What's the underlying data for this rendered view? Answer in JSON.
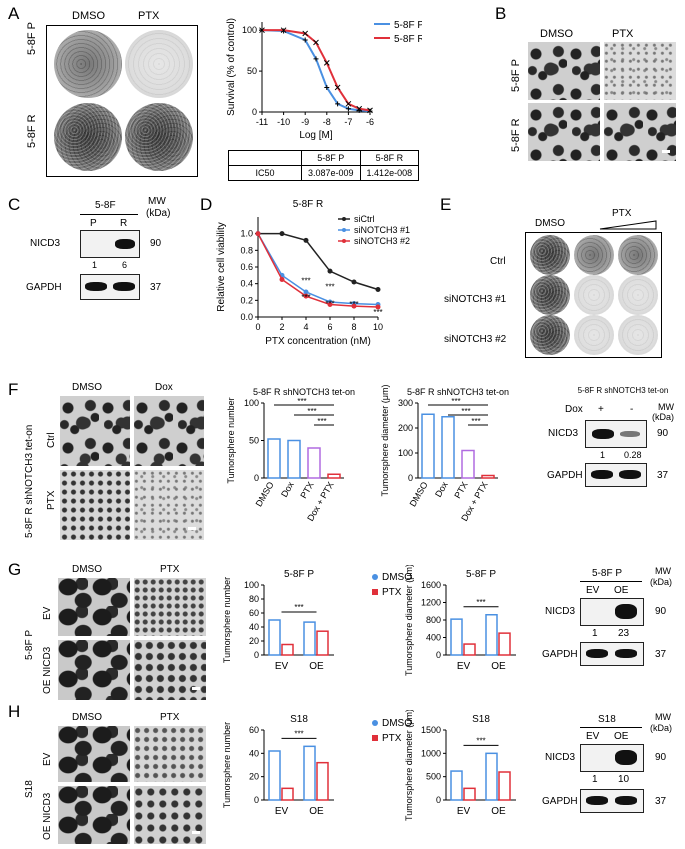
{
  "panels": {
    "A": {
      "letter": "A",
      "col1": "DMSO",
      "col2": "PTX",
      "row1": "5-8F  P",
      "row2": "5-8F  R",
      "chart": {
        "ylabel": "Survival (% of control)",
        "xlabel": "Log [M]",
        "xticks": [
          "-11",
          "-10",
          "-9",
          "-8",
          "-7",
          "-6"
        ],
        "yticks": [
          "0",
          "50",
          "100"
        ],
        "legend": [
          "5-8F P",
          "5-8F R"
        ],
        "colors": [
          "#4a90e2",
          "#e0303a"
        ]
      },
      "table": {
        "header": [
          "",
          "5-8F P",
          "5-8F R"
        ],
        "row": [
          "IC50",
          "3.087e-009",
          "1.412e-008"
        ]
      }
    },
    "B": {
      "letter": "B",
      "col1": "DMSO",
      "col2": "PTX",
      "row1": "5-8F  P",
      "row2": "5-8F  R"
    },
    "C": {
      "letter": "C",
      "title": "5-8F",
      "lane1": "P",
      "lane2": "R",
      "mw": "MW",
      "kda": "(kDa)",
      "protein1": "NICD3",
      "protein2": "GAPDH",
      "q1": "1",
      "q2": "6",
      "mw1": "90",
      "mw2": "37"
    },
    "D": {
      "letter": "D",
      "title": "5-8F  R",
      "ylabel": "Relative cell viability",
      "xlabel": "PTX concentration (nM)",
      "xticks": [
        "0",
        "2",
        "4",
        "6",
        "8",
        "10"
      ],
      "yticks": [
        "0.0",
        "0.2",
        "0.4",
        "0.6",
        "0.8",
        "1.0"
      ],
      "legend": [
        "siCtrl",
        "siNOTCH3 #1",
        "siNOTCH3 #2"
      ],
      "colors": [
        "#222222",
        "#4a90e2",
        "#e0303a"
      ],
      "sig": "***"
    },
    "E": {
      "letter": "E",
      "col1": "DMSO",
      "col2": "PTX",
      "row1": "Ctrl",
      "row2": "siNOTCH3 #1",
      "row3": "siNOTCH3 #2"
    },
    "F": {
      "letter": "F",
      "side": "5-8F R shNOTCH3 tet-on",
      "col1": "DMSO",
      "col2": "Dox",
      "row1": "Ctrl",
      "row2": "PTX",
      "chart1": {
        "title": "5-8F R shNOTCH3 tet-on",
        "ylabel": "Tumorsphere number",
        "yticks": [
          "0",
          "50",
          "100"
        ],
        "xticks": [
          "DMSO",
          "Dox",
          "PTX",
          "Dox + PTX"
        ]
      },
      "chart2": {
        "title": "5-8F R shNOTCH3  tet-on",
        "ylabel": "Tumorsphere diameter (μm)",
        "yticks": [
          "0",
          "100",
          "200",
          "300"
        ],
        "xticks": [
          "DMSO",
          "Dox",
          "PTX",
          "Dox + PTX"
        ]
      },
      "sig": "***",
      "blot": {
        "title": "5-8F R shNOTCH3 tet-on",
        "dox": "Dox",
        "plus": "+",
        "minus": "-",
        "mw": "MW",
        "kda": "(kDa)",
        "protein1": "NICD3",
        "protein2": "GAPDH",
        "q1": "1",
        "q2": "0.28",
        "mw1": "90",
        "mw2": "37"
      }
    },
    "G": {
      "letter": "G",
      "side": "5-8F P",
      "col1": "DMSO",
      "col2": "PTX",
      "row1": "EV",
      "row2": "OE NICD3",
      "chart1": {
        "title": "5-8F P",
        "ylabel": "Tumorsphere number",
        "yticks": [
          "0",
          "20",
          "40",
          "60",
          "80",
          "100"
        ],
        "xticks": [
          "EV",
          "OE"
        ]
      },
      "legend": [
        "DMSO",
        "PTX"
      ],
      "chart2": {
        "title": "5-8F P",
        "ylabel": "Tumorsphere diameter (μm)",
        "yticks": [
          "0",
          "400",
          "800",
          "1200",
          "1600"
        ],
        "xticks": [
          "EV",
          "OE"
        ]
      },
      "sig": "***",
      "blot": {
        "title": "5-8F P",
        "lane1": "EV",
        "lane2": "OE",
        "mw": "MW",
        "kda": "(kDa)",
        "protein1": "NICD3",
        "protein2": "GAPDH",
        "q1": "1",
        "q2": "23",
        "mw1": "90",
        "mw2": "37"
      }
    },
    "H": {
      "letter": "H",
      "side": "S18",
      "col1": "DMSO",
      "col2": "PTX",
      "row1": "EV",
      "row2": "OE NICD3",
      "chart1": {
        "title": "S18",
        "ylabel": "Tumorsphere number",
        "yticks": [
          "0",
          "20",
          "40",
          "60"
        ],
        "xticks": [
          "EV",
          "OE"
        ]
      },
      "legend": [
        "DMSO",
        "PTX"
      ],
      "chart2": {
        "title": "S18",
        "ylabel": "Tumorsphere diameter (μm)",
        "yticks": [
          "0",
          "500",
          "1000",
          "1500"
        ],
        "xticks": [
          "EV",
          "OE"
        ]
      },
      "sig": "***",
      "blot": {
        "title": "S18",
        "lane1": "EV",
        "lane2": "OE",
        "mw": "MW",
        "kda": "(kDa)",
        "protein1": "NICD3",
        "protein2": "GAPDH",
        "q1": "1",
        "q2": "10",
        "mw1": "90",
        "mw2": "37"
      }
    }
  },
  "chart_data": [
    {
      "type": "line",
      "panel": "A",
      "x": [
        -11,
        -10,
        -9,
        -8.5,
        -8,
        -7.5,
        -7,
        -6.5,
        -6
      ],
      "series": [
        {
          "name": "5-8F P",
          "values": [
            100,
            99,
            88,
            65,
            30,
            10,
            4,
            2,
            1
          ]
        },
        {
          "name": "5-8F R",
          "values": [
            100,
            100,
            96,
            85,
            60,
            30,
            10,
            4,
            2
          ]
        }
      ],
      "xlabel": "Log [M]",
      "ylabel": "Survival (% of control)",
      "ylim": [
        0,
        110
      ],
      "xlim": [
        -11,
        -6
      ]
    },
    {
      "type": "line",
      "panel": "D",
      "x": [
        0,
        2,
        4,
        6,
        8,
        10
      ],
      "series": [
        {
          "name": "siCtrl",
          "values": [
            1.0,
            1.0,
            0.92,
            0.55,
            0.42,
            0.33
          ]
        },
        {
          "name": "siNOTCH3 #1",
          "values": [
            1.0,
            0.5,
            0.3,
            0.18,
            0.16,
            0.15
          ]
        },
        {
          "name": "siNOTCH3 #2",
          "values": [
            1.0,
            0.45,
            0.25,
            0.15,
            0.13,
            0.12
          ]
        }
      ],
      "xlabel": "PTX concentration (nM)",
      "ylabel": "Relative cell viability",
      "ylim": [
        0,
        1.2
      ]
    },
    {
      "type": "bar",
      "panel": "F1",
      "categories": [
        "DMSO",
        "Dox",
        "PTX",
        "Dox + PTX"
      ],
      "values": [
        52,
        50,
        40,
        5
      ],
      "ylim": [
        0,
        100
      ],
      "ylabel": "Tumorsphere number"
    },
    {
      "type": "bar",
      "panel": "F2",
      "categories": [
        "DMSO",
        "Dox",
        "PTX",
        "Dox + PTX"
      ],
      "values": [
        255,
        245,
        110,
        10
      ],
      "ylim": [
        0,
        300
      ],
      "ylabel": "Tumorsphere diameter (μm)"
    },
    {
      "type": "bar",
      "panel": "G1",
      "categories": [
        "EV",
        "OE"
      ],
      "series": [
        {
          "name": "DMSO",
          "values": [
            50,
            47
          ]
        },
        {
          "name": "PTX",
          "values": [
            15,
            34
          ]
        }
      ],
      "ylim": [
        0,
        100
      ],
      "ylabel": "Tumorsphere number"
    },
    {
      "type": "bar",
      "panel": "G2",
      "categories": [
        "EV",
        "OE"
      ],
      "series": [
        {
          "name": "DMSO",
          "values": [
            820,
            920
          ]
        },
        {
          "name": "PTX",
          "values": [
            250,
            500
          ]
        }
      ],
      "ylim": [
        0,
        1600
      ],
      "ylabel": "Tumorsphere diameter (μm)"
    },
    {
      "type": "bar",
      "panel": "H1",
      "categories": [
        "EV",
        "OE"
      ],
      "series": [
        {
          "name": "DMSO",
          "values": [
            42,
            46
          ]
        },
        {
          "name": "PTX",
          "values": [
            10,
            32
          ]
        }
      ],
      "ylim": [
        0,
        60
      ],
      "ylabel": "Tumorsphere number"
    },
    {
      "type": "bar",
      "panel": "H2",
      "categories": [
        "EV",
        "OE"
      ],
      "series": [
        {
          "name": "DMSO",
          "values": [
            620,
            1000
          ]
        },
        {
          "name": "PTX",
          "values": [
            250,
            600
          ]
        }
      ],
      "ylim": [
        0,
        1500
      ],
      "ylabel": "Tumorsphere diameter (μm)"
    }
  ],
  "colors": {
    "blue": "#4a90e2",
    "red": "#e0303a",
    "black": "#222222"
  }
}
